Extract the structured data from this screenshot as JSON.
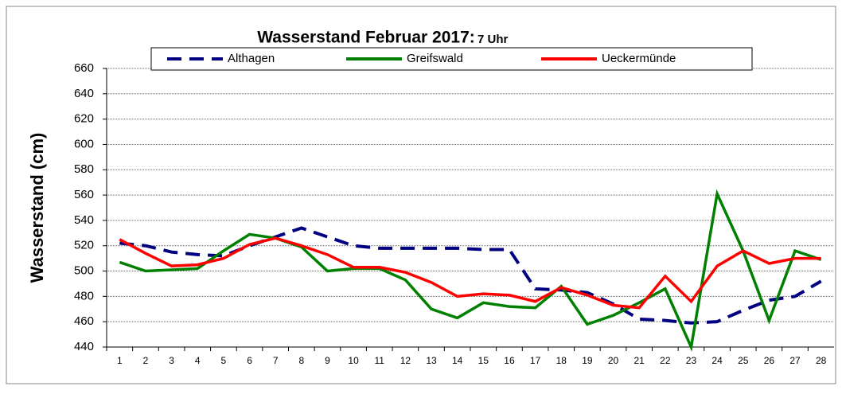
{
  "chart_data": {
    "type": "line",
    "title": "Wasserstand Februar 2017:",
    "subtitle": "7 Uhr",
    "ylabel": "Wasserstand (cm)",
    "categories": [
      "1",
      "2",
      "3",
      "4",
      "5",
      "6",
      "7",
      "8",
      "9",
      "10",
      "11",
      "12",
      "13",
      "14",
      "15",
      "16",
      "17",
      "18",
      "19",
      "20",
      "21",
      "22",
      "23",
      "24",
      "25",
      "26",
      "27",
      "28"
    ],
    "ylim": [
      440,
      660
    ],
    "yticks": [
      440,
      460,
      480,
      500,
      520,
      540,
      560,
      580,
      600,
      620,
      640,
      660
    ],
    "grid": true,
    "series": [
      {
        "name": "Althagen",
        "color": "#000080",
        "dashed": true,
        "values": [
          522,
          520,
          515,
          513,
          512,
          520,
          527,
          534,
          527,
          520,
          518,
          518,
          518,
          518,
          517,
          517,
          486,
          485,
          483,
          474,
          462,
          461,
          459,
          460,
          469,
          477,
          480,
          492
        ]
      },
      {
        "name": "Greifswald",
        "color": "#008000",
        "values": [
          507,
          500,
          501,
          502,
          516,
          529,
          526,
          519,
          500,
          502,
          502,
          493,
          470,
          463,
          475,
          472,
          471,
          488,
          458,
          465,
          475,
          486,
          440,
          561,
          516,
          461,
          516,
          509
        ]
      },
      {
        "name": "Ueckermünde",
        "color": "#ff0000",
        "values": [
          525,
          514,
          504,
          505,
          510,
          521,
          526,
          520,
          513,
          503,
          503,
          499,
          491,
          480,
          482,
          481,
          476,
          487,
          481,
          473,
          471,
          496,
          476,
          504,
          516,
          506,
          510,
          510
        ]
      }
    ]
  }
}
